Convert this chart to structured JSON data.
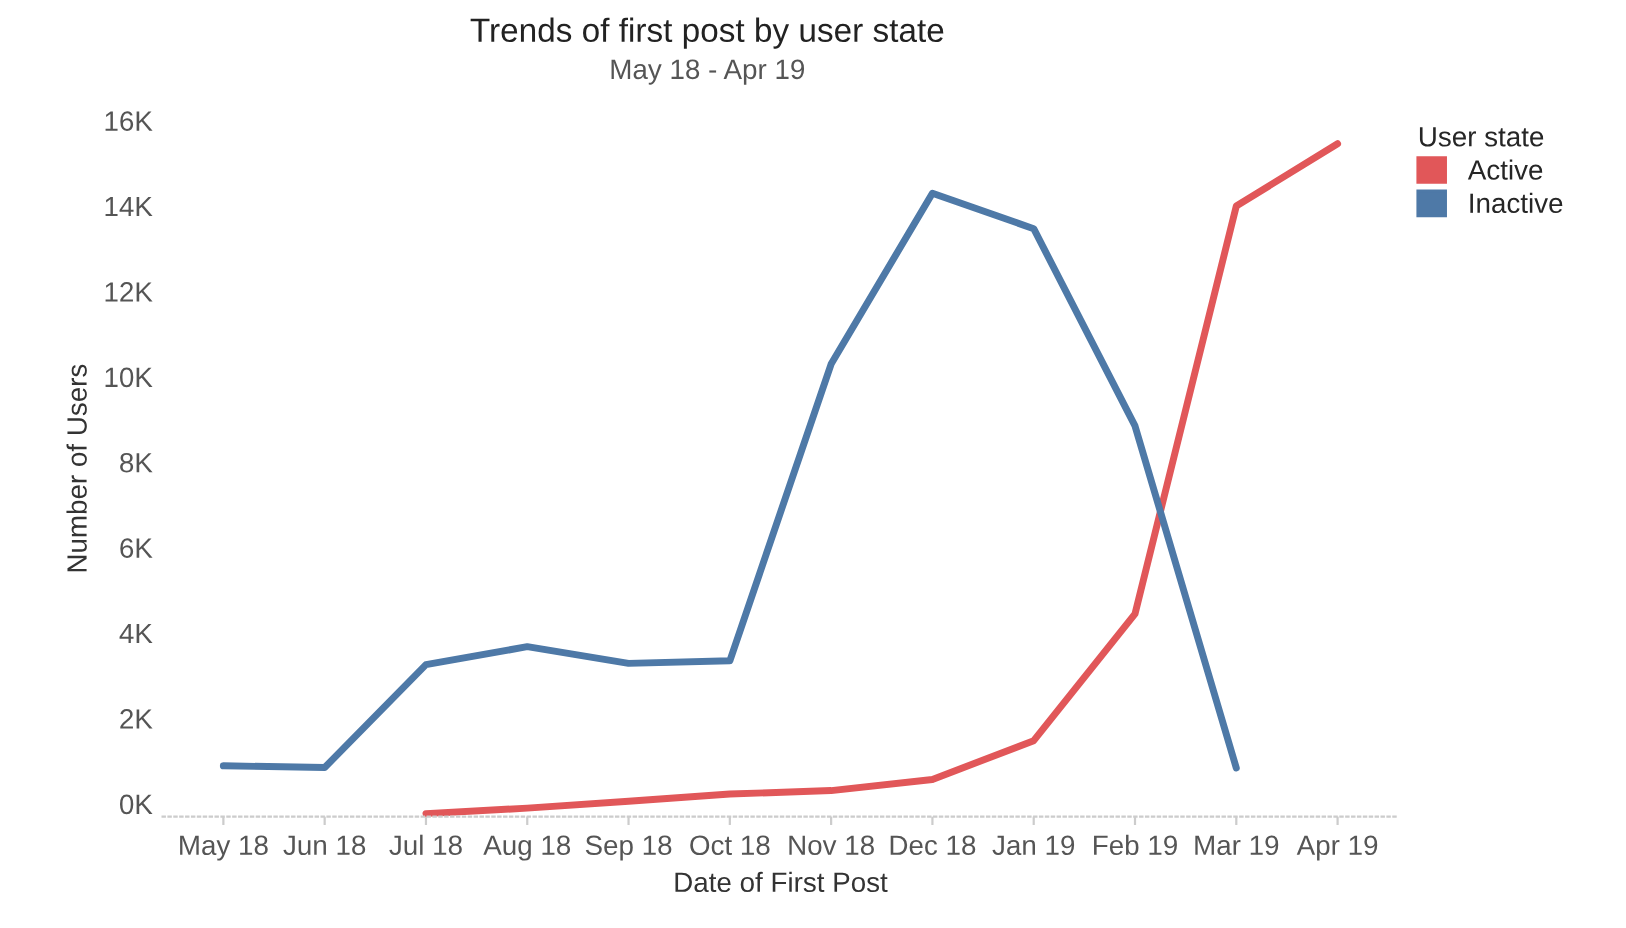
{
  "chart_data": {
    "type": "line",
    "title": "Trends of first post by user state",
    "subtitle": "May 18 - Apr 19",
    "xlabel": "Date of First Post",
    "ylabel": "Number of Users",
    "legend_title": "User state",
    "legend": "top right",
    "categories": [
      "May 18",
      "Jun 18",
      "Jul 18",
      "Aug 18",
      "Sep 18",
      "Oct 18",
      "Nov 18",
      "Dec 18",
      "Jan 19",
      "Feb 19",
      "Mar 19",
      "Apr 19"
    ],
    "series": [
      {
        "name": "Active",
        "color": "#e15759",
        "values": [
          null,
          null,
          -230,
          -100,
          60,
          230,
          310,
          570,
          1480,
          4450,
          14000,
          15460
        ]
      },
      {
        "name": "Inactive",
        "color": "#4e79a7",
        "values": [
          890,
          850,
          3260,
          3680,
          3290,
          3350,
          10300,
          14300,
          13470,
          8850,
          840,
          null
        ]
      }
    ],
    "ylim": [
      -300,
      16000
    ],
    "yticks": [
      {
        "value": 0,
        "label": "0K"
      },
      {
        "value": 2000,
        "label": "2K"
      },
      {
        "value": 4000,
        "label": "4K"
      },
      {
        "value": 6000,
        "label": "6K"
      },
      {
        "value": 8000,
        "label": "8K"
      },
      {
        "value": 10000,
        "label": "10K"
      },
      {
        "value": 12000,
        "label": "12K"
      },
      {
        "value": 14000,
        "label": "14K"
      },
      {
        "value": 16000,
        "label": "16K"
      }
    ],
    "grid": false,
    "line_style": "solid",
    "marker": "none"
  }
}
